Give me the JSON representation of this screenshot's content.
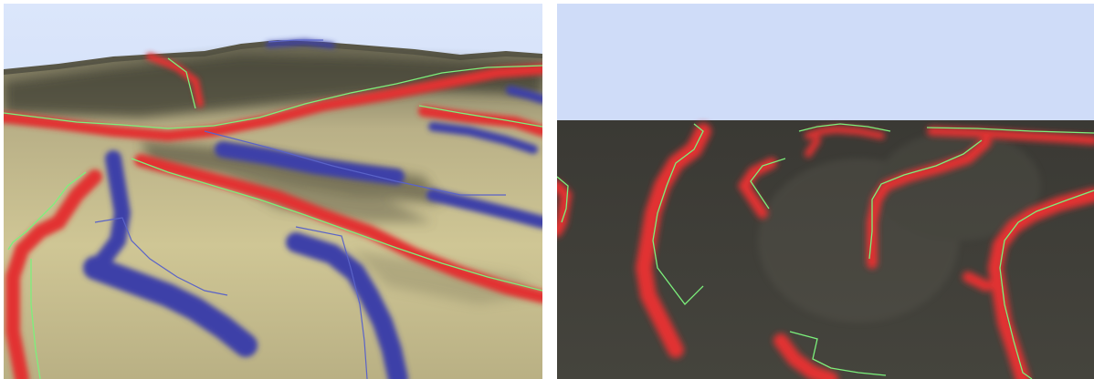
{
  "figure": {
    "panels": [
      {
        "id": "left",
        "description_visible_text": ""
      },
      {
        "id": "right",
        "description_visible_text": ""
      }
    ],
    "colors": {
      "sky": "#cfdcf6",
      "terrain_light": "#c9bf8a",
      "terrain_dark": "#3b3a36",
      "ridge_red": "#e23030",
      "valley_blue": "#3c3fa8",
      "line_green": "#7cf07c",
      "line_blue": "#5a63c8"
    }
  }
}
